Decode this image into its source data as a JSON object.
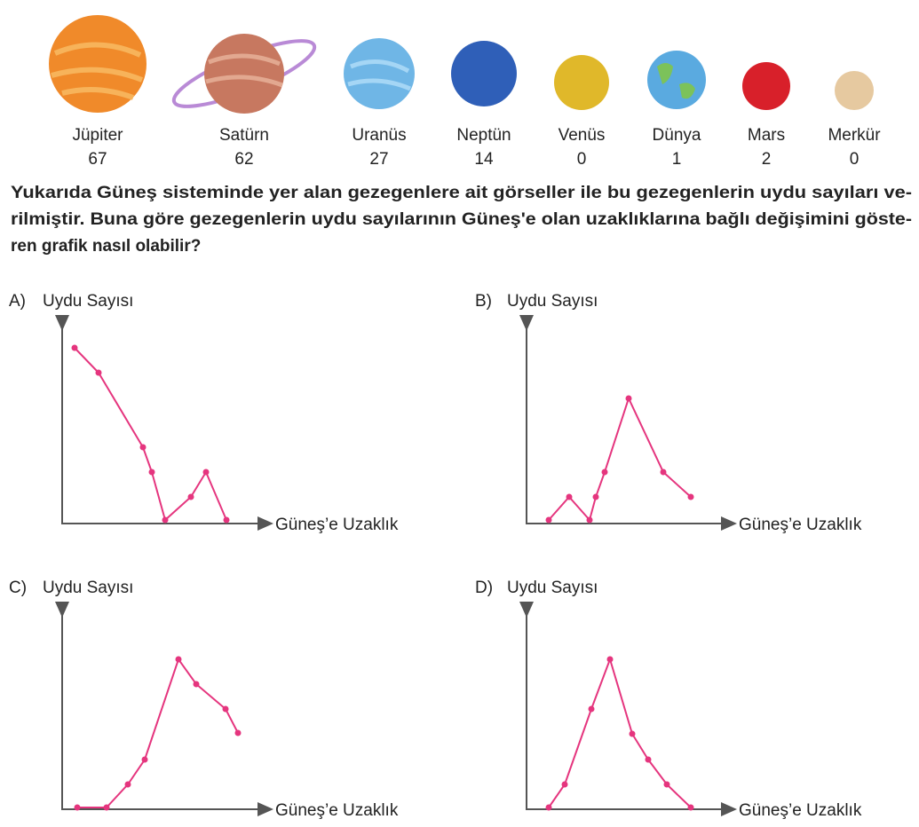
{
  "planets": [
    {
      "name": "Jüpiter",
      "moons": "67"
    },
    {
      "name": "Satürn",
      "moons": "62"
    },
    {
      "name": "Uranüs",
      "moons": "27"
    },
    {
      "name": "Neptün",
      "moons": "14"
    },
    {
      "name": "Venüs",
      "moons": "0"
    },
    {
      "name": "Dünya",
      "moons": "1"
    },
    {
      "name": "Mars",
      "moons": "2"
    },
    {
      "name": "Merkür",
      "moons": "0"
    }
  ],
  "question": {
    "lines": [
      "Yukarıda Güneş sisteminde yer alan gezegenlere ait görseller ile bu gezegenlerin uydu sayıları ve-",
      "rilmiştir. Buna göre gezegenlerin uydu sayılarının Güneş'e olan uzaklıklarına bağlı değişimini göste-",
      "ren grafik nasıl olabilir?"
    ]
  },
  "options": [
    {
      "letter": "A)",
      "y_label": "Uydu Sayısı",
      "x_label": "Güneş’e Uzaklık"
    },
    {
      "letter": "B)",
      "y_label": "Uydu Sayısı",
      "x_label": "Güneş’e Uzaklık"
    },
    {
      "letter": "C)",
      "y_label": "Uydu Sayısı",
      "x_label": "Güneş’e Uzaklık"
    },
    {
      "letter": "D)",
      "y_label": "Uydu Sayısı",
      "x_label": "Güneş’e Uzaklık"
    }
  ]
}
